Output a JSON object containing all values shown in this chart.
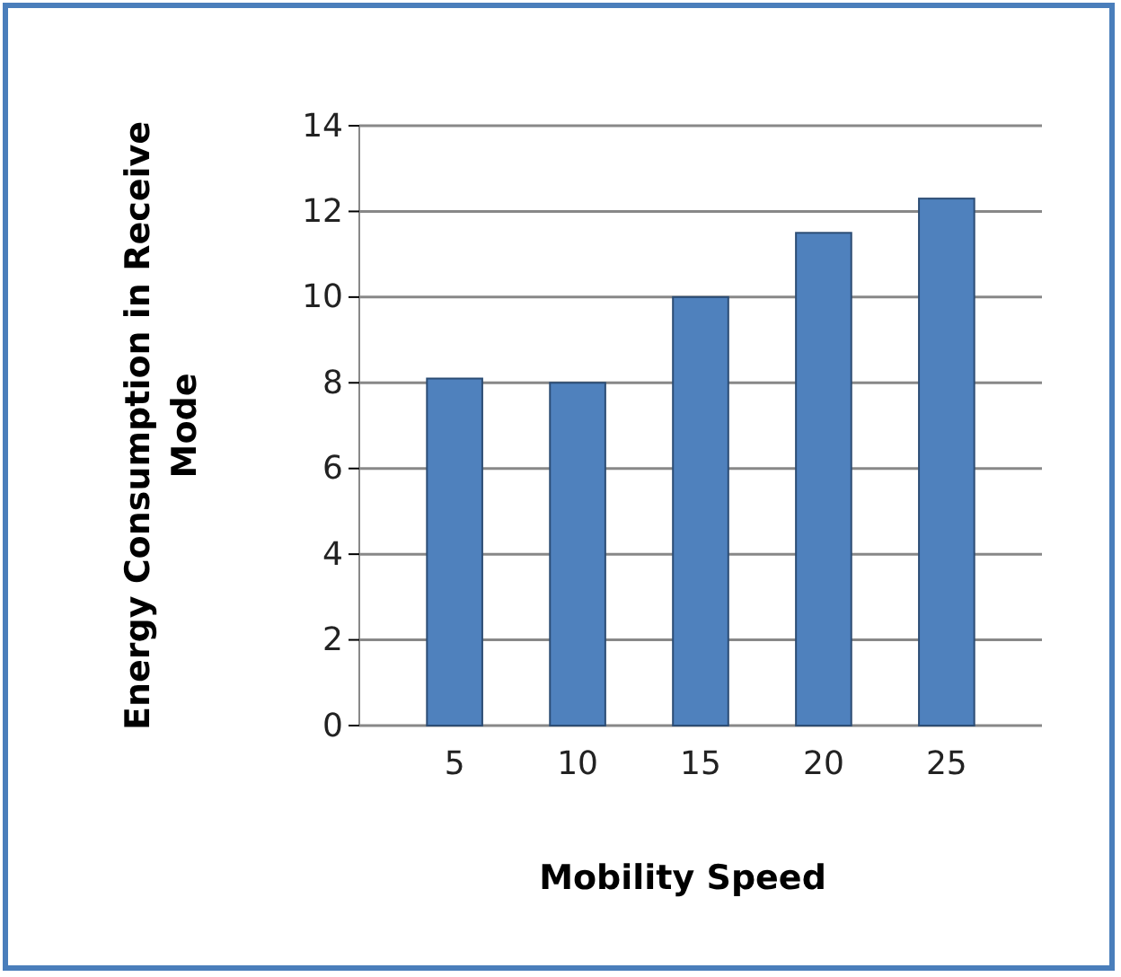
{
  "chart_data": {
    "type": "bar",
    "xlabel": "Mobility Speed",
    "ylabel": "Energy Consumption in Receive Mode",
    "categories": [
      "5",
      "10",
      "15",
      "20",
      "25"
    ],
    "series": [
      {
        "color": "#4f81bd",
        "values": [
          8.1,
          8.0,
          10.0,
          11.5,
          12.3
        ]
      }
    ],
    "ylim": [
      0,
      14
    ],
    "yticks": [
      0,
      2,
      4,
      6,
      8,
      10,
      12,
      14
    ],
    "grid": "y"
  }
}
